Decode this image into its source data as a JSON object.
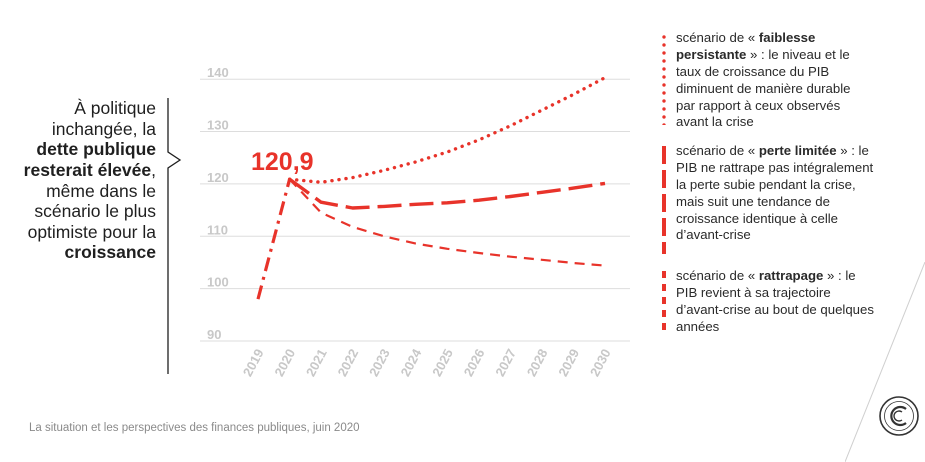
{
  "headline": {
    "parts": [
      {
        "text": "À politique inchangée, la ",
        "bold": false
      },
      {
        "text": "dette publique resterait élevée",
        "bold": true
      },
      {
        "text": ", même dans le scénario le plus optimiste pour la ",
        "bold": false
      },
      {
        "text": "croissance",
        "bold": true
      }
    ]
  },
  "annotation": {
    "value_label": "120,9"
  },
  "legend": [
    {
      "style": "dotted",
      "parts": [
        {
          "text": "scénario de « ",
          "bold": false
        },
        {
          "text": "faiblesse persistante",
          "bold": true
        },
        {
          "text": " » : le niveau et le taux de croissance du PIB diminuent de manière durable par rapport à ceux observés avant la crise",
          "bold": false
        }
      ]
    },
    {
      "style": "dashed",
      "parts": [
        {
          "text": "scénario de « ",
          "bold": false
        },
        {
          "text": "perte limitée",
          "bold": true
        },
        {
          "text": " » : le PIB ne rattrape pas intégralement la perte subie pendant la crise, mais suit une tendance de croissance identique à celle d’avant-crise",
          "bold": false
        }
      ]
    },
    {
      "style": "short-dash",
      "parts": [
        {
          "text": "scénario de « ",
          "bold": false
        },
        {
          "text": "rattrapage",
          "bold": true
        },
        {
          "text": " » : le PIB revient à sa trajectoire d’avant-crise au bout de quelques années",
          "bold": false
        }
      ]
    }
  ],
  "source": "La situation et les perspectives des finances publiques, juin 2020",
  "colors": {
    "accent": "#e8332a",
    "axis_text": "#c8c8c8",
    "grid": "#dddddd"
  },
  "chart_data": {
    "type": "line",
    "x": [
      "2019",
      "2020",
      "2021",
      "2022",
      "2023",
      "2024",
      "2025",
      "2026",
      "2027",
      "2028",
      "2029",
      "2030"
    ],
    "ylim": [
      90,
      140
    ],
    "yticks": [
      90,
      100,
      110,
      120,
      130,
      140
    ],
    "grid": true,
    "series": [
      {
        "key": "base",
        "style": "dash-dot",
        "x": [
          "2019",
          "2020"
        ],
        "values": [
          98,
          120.9
        ]
      },
      {
        "key": "faiblesse",
        "style": "dotted",
        "x": [
          "2020",
          "2021",
          "2022",
          "2023",
          "2024",
          "2025",
          "2026",
          "2027",
          "2028",
          "2029",
          "2030"
        ],
        "values": [
          120.9,
          120.3,
          121.2,
          122.6,
          124.2,
          126.1,
          128.4,
          131.1,
          134.1,
          137.1,
          140.3
        ]
      },
      {
        "key": "perte",
        "style": "dashed",
        "x": [
          "2020",
          "2021",
          "2022",
          "2023",
          "2024",
          "2025",
          "2026",
          "2027",
          "2028",
          "2029",
          "2030"
        ],
        "values": [
          120.9,
          116.5,
          115.4,
          115.7,
          116.1,
          116.4,
          116.9,
          117.6,
          118.4,
          119.2,
          120.1
        ]
      },
      {
        "key": "rattrapage",
        "style": "short-dash",
        "x": [
          "2020",
          "2021",
          "2022",
          "2023",
          "2024",
          "2025",
          "2026",
          "2027",
          "2028",
          "2029",
          "2030"
        ],
        "values": [
          120.9,
          114.5,
          111.8,
          110.0,
          108.6,
          107.6,
          106.8,
          106.1,
          105.5,
          104.9,
          104.4
        ]
      }
    ]
  }
}
